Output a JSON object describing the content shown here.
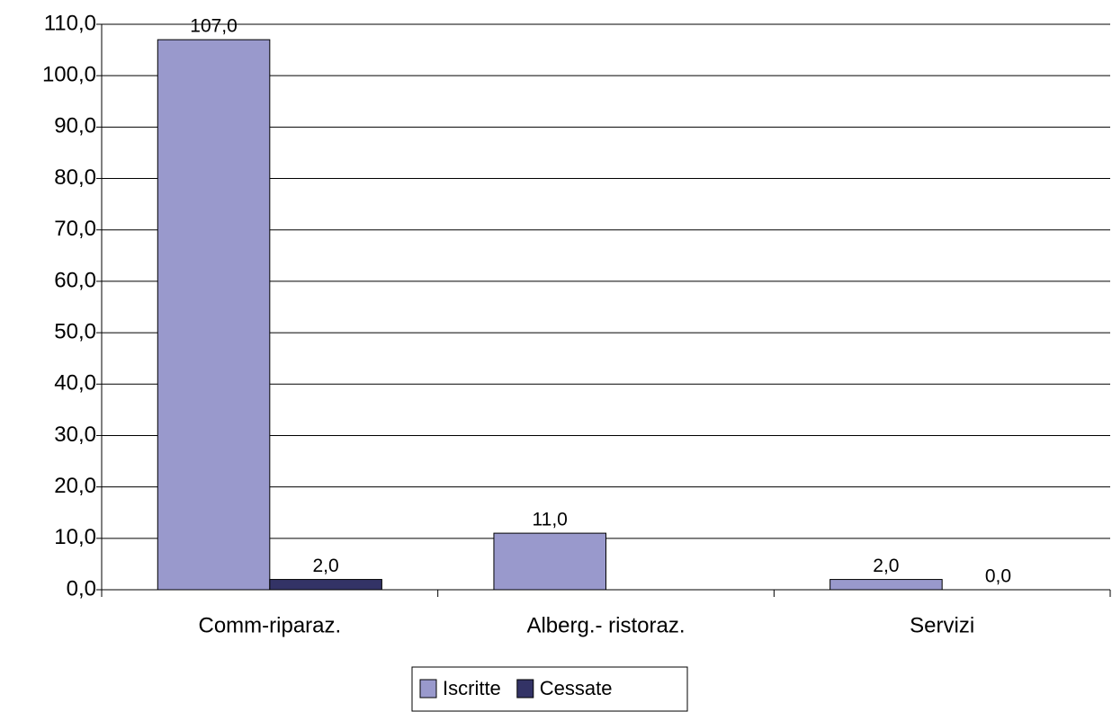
{
  "chart_data": {
    "type": "bar",
    "categories": [
      "Comm-riparaz.",
      "Alberg.- ristoraz.",
      "Servizi"
    ],
    "series": [
      {
        "name": "Iscritte",
        "color": "#9999cc",
        "values": [
          107,
          11,
          2
        ],
        "value_labels": [
          "107,0",
          "11,0",
          "2,0"
        ]
      },
      {
        "name": "Cessate",
        "color": "#333366",
        "values": [
          2,
          null,
          0
        ],
        "value_labels": [
          "2,0",
          null,
          "0,0"
        ]
      }
    ],
    "ylim": [
      0,
      110
    ],
    "yticks": [
      {
        "value": 0,
        "label": "0,0"
      },
      {
        "value": 10,
        "label": "10,0"
      },
      {
        "value": 20,
        "label": "20,0"
      },
      {
        "value": 30,
        "label": "30,0"
      },
      {
        "value": 40,
        "label": "40,0"
      },
      {
        "value": 50,
        "label": "50,0"
      },
      {
        "value": 60,
        "label": "60,0"
      },
      {
        "value": 70,
        "label": "70,0"
      },
      {
        "value": 80,
        "label": "80,0"
      },
      {
        "value": 90,
        "label": "90,0"
      },
      {
        "value": 100,
        "label": "100,0"
      },
      {
        "value": 110,
        "label": "110,0"
      }
    ],
    "grid": true,
    "legend": "bottom"
  }
}
